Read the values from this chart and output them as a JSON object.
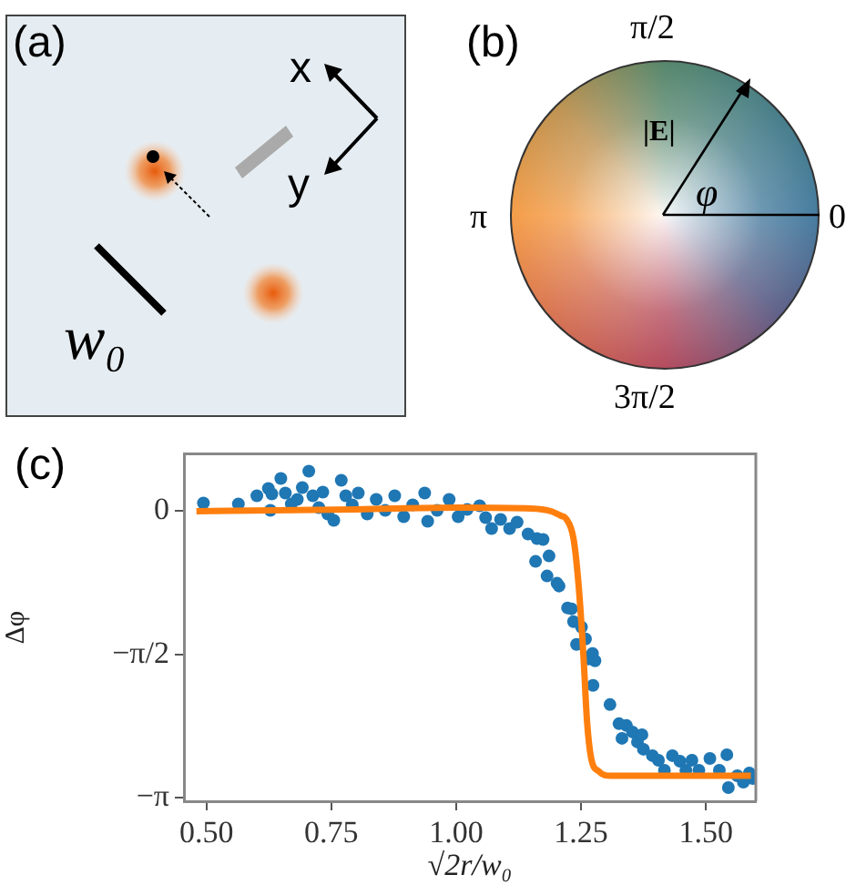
{
  "chart_data": {
    "type": "scatter",
    "xlabel": "√2r/w₀",
    "ylabel": "Δφ",
    "annotations": [
      "(a)",
      "x",
      "y",
      "w₀",
      "(b)",
      "π/2",
      "π",
      "0",
      "3π/2",
      "|E|",
      "φ",
      "(c)"
    ],
    "xlim": [
      0.455,
      1.6
    ],
    "ylim": [
      -3.18,
      0.63
    ],
    "xticks": [
      {
        "value": 0.5,
        "label": "0.50"
      },
      {
        "value": 0.75,
        "label": "0.75"
      },
      {
        "value": 1.0,
        "label": "1.00"
      },
      {
        "value": 1.25,
        "label": "1.25"
      },
      {
        "value": 1.5,
        "label": "1.50"
      }
    ],
    "yticks": [
      {
        "value": 0,
        "label": "0"
      },
      {
        "value": -1.5708,
        "label": "−π/2"
      },
      {
        "value": -3.1416,
        "label": "−π"
      }
    ],
    "grid": false,
    "legend": false,
    "marker": "circle",
    "series": [
      {
        "type": "scatter",
        "color": "#1f77b4",
        "x": [
          0.494,
          0.564,
          0.601,
          0.624,
          0.631,
          0.628,
          0.649,
          0.658,
          0.67,
          0.682,
          0.692,
          0.705,
          0.713,
          0.725,
          0.733,
          0.743,
          0.755,
          0.77,
          0.779,
          0.792,
          0.804,
          0.822,
          0.84,
          0.858,
          0.877,
          0.895,
          0.913,
          0.937,
          0.943,
          0.962,
          0.986,
          1.004,
          1.022,
          1.047,
          1.059,
          1.071,
          1.089,
          1.107,
          1.122,
          1.144,
          1.162,
          1.174,
          1.159,
          1.186,
          1.182,
          1.202,
          1.206,
          1.223,
          1.231,
          1.235,
          1.241,
          1.251,
          1.259,
          1.265,
          1.273,
          1.278,
          1.274,
          1.308,
          1.326,
          1.341,
          1.332,
          1.353,
          1.363,
          1.372,
          1.375,
          1.393,
          1.405,
          1.417,
          1.433,
          1.448,
          1.46,
          1.472,
          1.486,
          1.508,
          1.527,
          1.542,
          1.545,
          1.563,
          1.575,
          1.587,
          1.594
        ],
        "values": [
          0.09,
          0.08,
          0.17,
          0.25,
          0.19,
          0.01,
          0.36,
          0.2,
          0.08,
          0.13,
          0.26,
          0.44,
          0.17,
          0.04,
          0.21,
          -0.03,
          -0.1,
          0.34,
          0.17,
          0.07,
          0.2,
          -0.03,
          0.13,
          0.01,
          0.17,
          -0.06,
          0.07,
          0.2,
          -0.11,
          0.01,
          0.13,
          -0.06,
          0.02,
          0.06,
          -0.07,
          -0.19,
          -0.09,
          -0.19,
          -0.12,
          -0.25,
          -0.3,
          -0.31,
          -0.55,
          -0.49,
          -0.71,
          -0.79,
          -0.82,
          -1.06,
          -1.07,
          -1.21,
          -1.46,
          -1.27,
          -1.4,
          -1.62,
          -1.56,
          -1.64,
          -1.91,
          -2.12,
          -2.33,
          -2.35,
          -2.49,
          -2.42,
          -2.53,
          -2.45,
          -2.61,
          -2.68,
          -2.73,
          -2.84,
          -2.68,
          -2.74,
          -2.84,
          -2.73,
          -2.84,
          -2.71,
          -2.84,
          -2.67,
          -3.03,
          -2.9,
          -2.97,
          -2.87,
          -2.93
        ]
      },
      {
        "type": "line",
        "color": "#ff7f0e",
        "marker": "none",
        "x": [
          0.48,
          0.8,
          1.0,
          1.15,
          1.19,
          1.21,
          1.22,
          1.235,
          1.245,
          1.255,
          1.262,
          1.27,
          1.285,
          1.31,
          1.59
        ],
        "values": [
          0,
          0.02,
          0.04,
          0.03,
          0,
          -0.05,
          -0.08,
          -0.3,
          -0.8,
          -1.6,
          -2.3,
          -2.7,
          -2.85,
          -2.9,
          -2.9
        ]
      }
    ]
  }
}
